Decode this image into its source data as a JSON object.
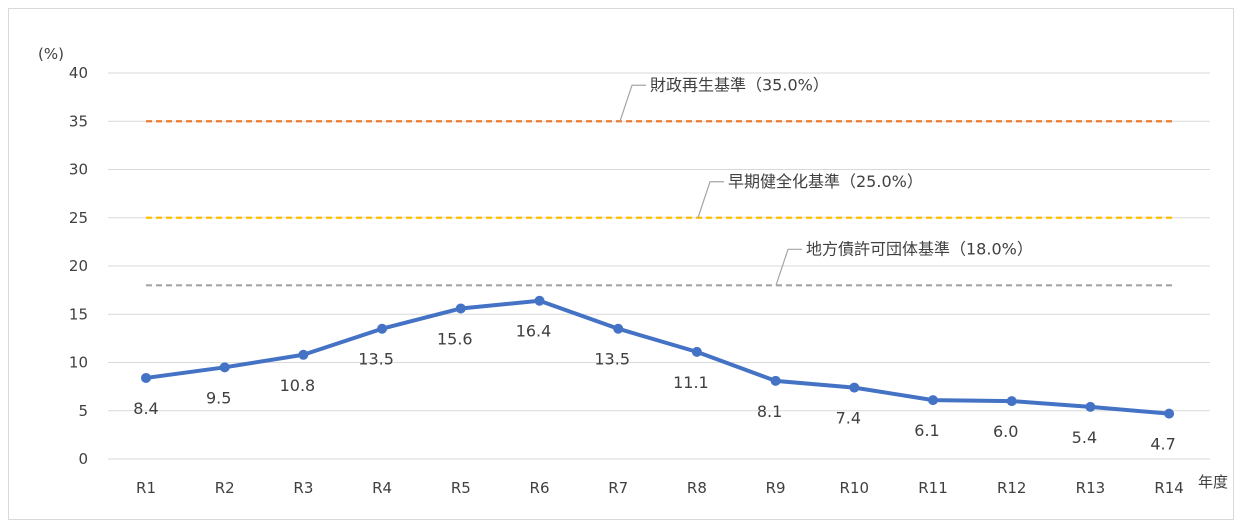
{
  "chart_data": {
    "type": "line",
    "title": "",
    "ylabel": "(%)",
    "xlabel": "年度",
    "ylim": [
      0,
      40
    ],
    "yticks": [
      0,
      5,
      10,
      15,
      20,
      25,
      30,
      35,
      40
    ],
    "grid": true,
    "categories": [
      "R1",
      "R2",
      "R3",
      "R4",
      "R5",
      "R6",
      "R7",
      "R8",
      "R9",
      "R10",
      "R11",
      "R12",
      "R13",
      "R14"
    ],
    "series": [
      {
        "values": [
          8.4,
          9.5,
          10.8,
          13.5,
          15.6,
          16.4,
          13.5,
          11.1,
          8.1,
          7.4,
          6.1,
          6.0,
          5.4,
          4.7
        ],
        "labels": [
          "8.4",
          "9.5",
          "10.8",
          "13.5",
          "15.6",
          "16.4",
          "13.5",
          "11.1",
          "8.1",
          "7.4",
          "6.1",
          "6.0",
          "5.4",
          "4.7"
        ],
        "color": "#4472c4"
      }
    ],
    "reference_lines": [
      {
        "label": "財政再生基準（35.0%）",
        "value": 35.0,
        "color": "#ed7d31"
      },
      {
        "label": "早期健全化基準（25.0%）",
        "value": 25.0,
        "color": "#ffc000"
      },
      {
        "label": "地方債許可団体基準（18.0%）",
        "value": 18.0,
        "color": "#a5a5a5"
      }
    ]
  }
}
